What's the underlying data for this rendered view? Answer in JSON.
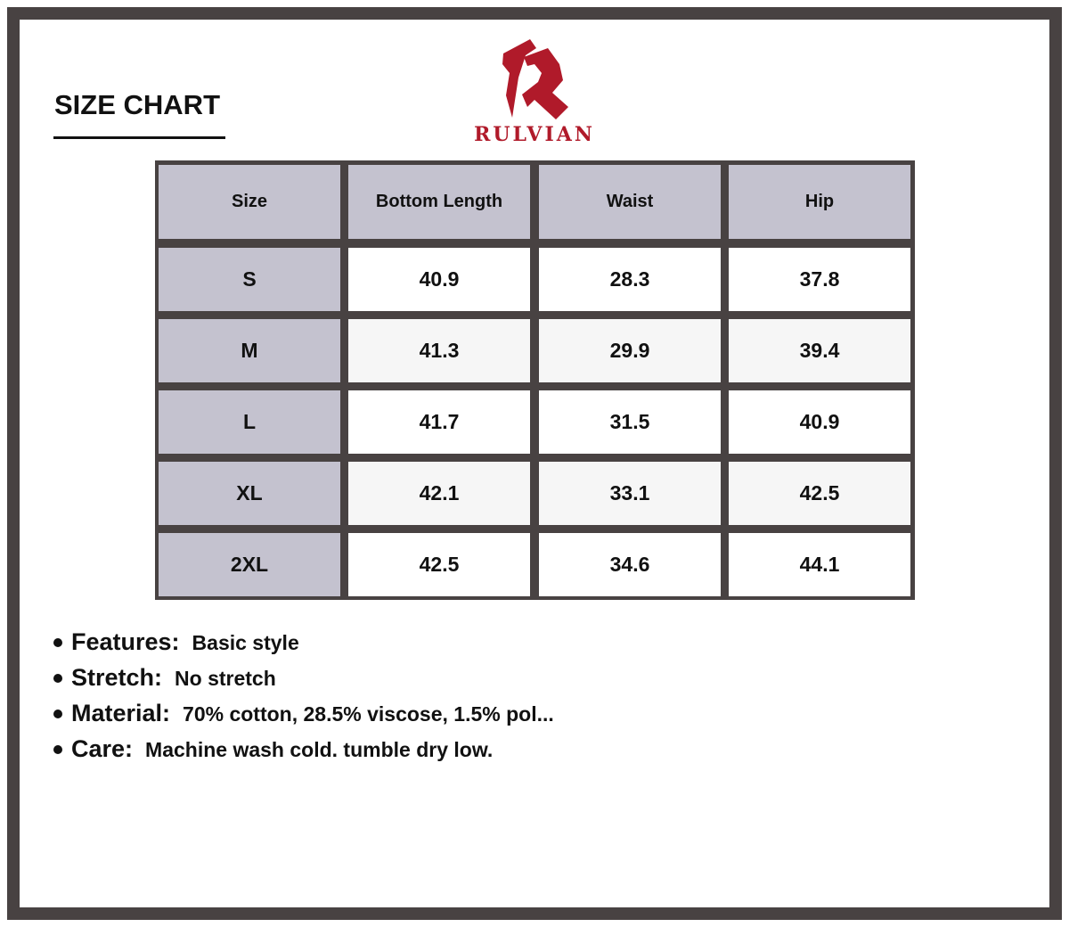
{
  "title": "SIZE CHART",
  "brand": {
    "name": "RULVIAN",
    "color": "#b01a2a"
  },
  "table": {
    "headers": [
      "Size",
      "Bottom Length",
      "Waist",
      "Hip"
    ],
    "rows": [
      [
        "S",
        "40.9",
        "28.3",
        "37.8"
      ],
      [
        "M",
        "41.3",
        "29.9",
        "39.4"
      ],
      [
        "L",
        "41.7",
        "31.5",
        "40.9"
      ],
      [
        "XL",
        "42.1",
        "33.1",
        "42.5"
      ],
      [
        "2XL",
        "42.5",
        "34.6",
        "44.1"
      ]
    ]
  },
  "details": [
    {
      "label": "Features:",
      "value": "Basic style"
    },
    {
      "label": "Stretch:",
      "value": "No stretch"
    },
    {
      "label": "Material:",
      "value": "70% cotton, 28.5% viscose, 1.5% pol..."
    },
    {
      "label": "Care:",
      "value": "Machine wash cold. tumble dry low."
    }
  ]
}
